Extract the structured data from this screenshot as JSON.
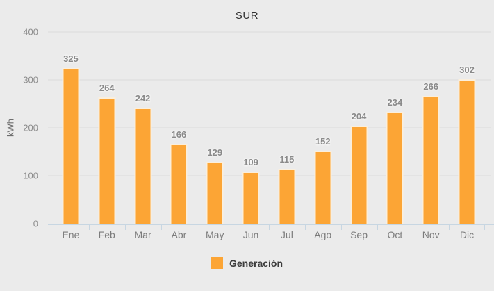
{
  "chart_data": {
    "type": "bar",
    "title": "SUR",
    "xlabel": "",
    "ylabel": "kWh",
    "categories": [
      "Ene",
      "Feb",
      "Mar",
      "Abr",
      "May",
      "Jun",
      "Jul",
      "Ago",
      "Sep",
      "Oct",
      "Nov",
      "Dic"
    ],
    "series": [
      {
        "name": "Generación",
        "values": [
          325,
          264,
          242,
          166,
          129,
          109,
          115,
          152,
          204,
          234,
          266,
          302
        ]
      }
    ],
    "ylim": [
      0,
      400
    ],
    "yticks": [
      0,
      100,
      200,
      300,
      400
    ],
    "grid": true,
    "value_labels": true,
    "legend_position": "bottom"
  },
  "colors": {
    "background": "#EBEBEB",
    "bar_fill": "#FCA535",
    "bar_border": "#FBEFDC",
    "grid_line": "#DBDBDB",
    "axis_line": "#C7D6E2",
    "tick_label": "#8C8C8C",
    "value_label": "#8A8A8A",
    "title_text": "#333333",
    "legend_text": "#3C3C3C",
    "ylabel_text": "#6E6E6E",
    "x_label": "#7C7C7C"
  }
}
